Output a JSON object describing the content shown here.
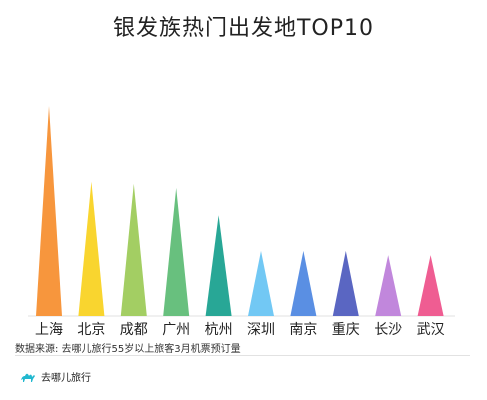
{
  "title": "银发族热门出发地TOP10",
  "source": "数据来源: 去哪儿旅行55岁以上旅客3月机票预订量",
  "brand": {
    "name": "去哪儿旅行",
    "color": "#22b8cf"
  },
  "chart_data": {
    "type": "bar",
    "shape": "triangle",
    "title": "银发族热门出发地TOP10",
    "categories": [
      "上海",
      "北京",
      "成都",
      "广州",
      "杭州",
      "深圳",
      "南京",
      "重庆",
      "长沙",
      "武汉"
    ],
    "values": [
      100,
      64,
      63,
      61,
      48,
      31,
      31,
      31,
      29,
      29
    ],
    "value_unit": "relative (no axis printed)",
    "colors": [
      "#f7963d",
      "#f9d52f",
      "#a3ce63",
      "#68c07e",
      "#28a796",
      "#72c8f4",
      "#5a8fe3",
      "#5a66c2",
      "#c187dc",
      "#ef5d92"
    ],
    "xlabel": "",
    "ylabel": "",
    "ylim": [
      0,
      100
    ],
    "grid": false,
    "legend": "none"
  }
}
